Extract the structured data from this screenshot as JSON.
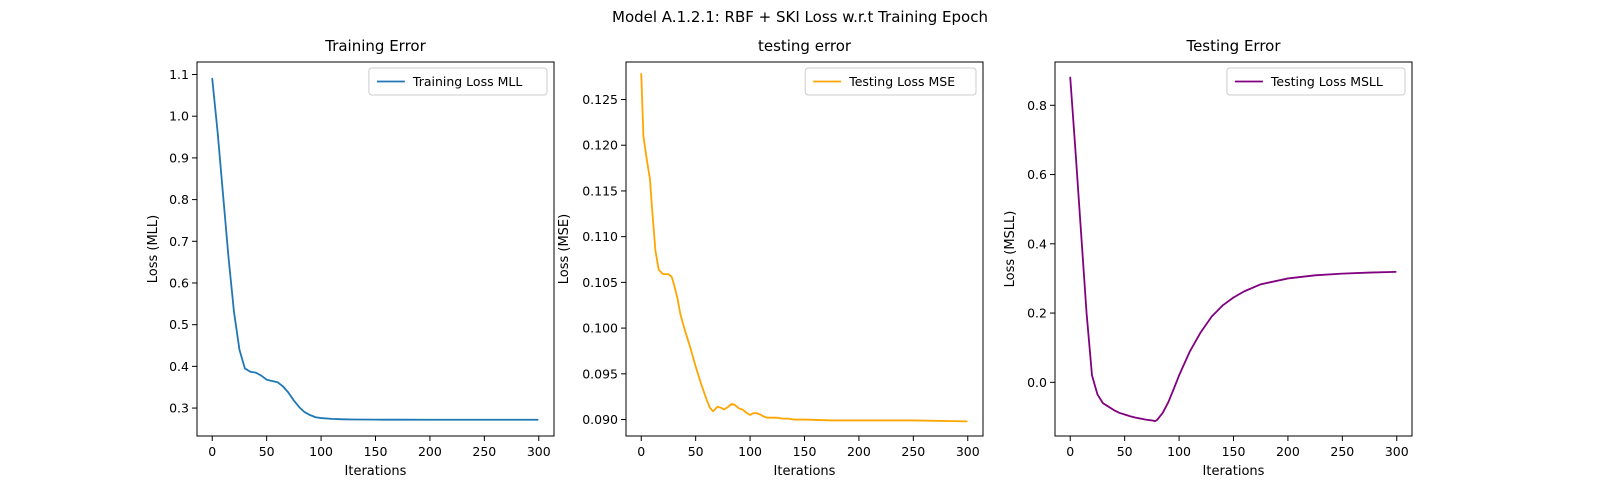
{
  "figure": {
    "suptitle": "Model A.1.2.1: RBF + SKI Loss w.r.t Training Epoch"
  },
  "chart_data": [
    {
      "type": "line",
      "title": "Training Error",
      "xlabel": "Iterations",
      "ylabel": "Loss (MLL)",
      "xlim": [
        -14,
        314
      ],
      "ylim": [
        0.233,
        1.13
      ],
      "xticks": [
        0,
        50,
        100,
        150,
        200,
        250,
        300
      ],
      "yticks": [
        0.3,
        0.4,
        0.5,
        0.6,
        0.7,
        0.8,
        0.9,
        1.0,
        1.1
      ],
      "ytick_labels": [
        "0.3",
        "0.4",
        "0.5",
        "0.6",
        "0.7",
        "0.8",
        "0.9",
        "1.0",
        "1.1"
      ],
      "legend_position": "upper-right",
      "series": [
        {
          "name": "Training Loss MLL",
          "color": "#1f77b4",
          "x": [
            0,
            5,
            10,
            15,
            20,
            25,
            30,
            35,
            40,
            45,
            50,
            55,
            60,
            65,
            70,
            75,
            80,
            85,
            90,
            95,
            100,
            110,
            120,
            130,
            150,
            175,
            200,
            250,
            299
          ],
          "y": [
            1.09,
            0.96,
            0.81,
            0.66,
            0.53,
            0.44,
            0.395,
            0.387,
            0.385,
            0.378,
            0.368,
            0.365,
            0.362,
            0.352,
            0.337,
            0.318,
            0.302,
            0.29,
            0.283,
            0.278,
            0.276,
            0.274,
            0.273,
            0.2725,
            0.2722,
            0.2721,
            0.272,
            0.272,
            0.272
          ]
        }
      ]
    },
    {
      "type": "line",
      "title": "testing error",
      "xlabel": "Iterations",
      "ylabel": "Loss (MSE)",
      "xlim": [
        -14,
        314
      ],
      "ylim": [
        0.0882,
        0.1291
      ],
      "xticks": [
        0,
        50,
        100,
        150,
        200,
        250,
        300
      ],
      "yticks": [
        0.09,
        0.095,
        0.1,
        0.105,
        0.11,
        0.115,
        0.12,
        0.125
      ],
      "ytick_labels": [
        "0.090",
        "0.095",
        "0.100",
        "0.105",
        "0.110",
        "0.115",
        "0.120",
        "0.125"
      ],
      "legend_position": "upper-right",
      "series": [
        {
          "name": "Testing Loss MSE",
          "color": "#ffa500",
          "x": [
            0,
            2,
            5,
            8,
            10,
            13,
            16,
            20,
            25,
            28,
            30,
            33,
            36,
            40,
            45,
            50,
            55,
            60,
            63,
            66,
            70,
            73,
            76,
            80,
            83,
            86,
            90,
            93,
            96,
            100,
            103,
            106,
            110,
            113,
            116,
            120,
            125,
            130,
            135,
            140,
            150,
            175,
            200,
            250,
            299
          ],
          "y": [
            0.1278,
            0.121,
            0.1185,
            0.1163,
            0.113,
            0.1085,
            0.1064,
            0.1059,
            0.1059,
            0.1056,
            0.1048,
            0.1034,
            0.1015,
            0.0998,
            0.0979,
            0.0958,
            0.0939,
            0.0922,
            0.0913,
            0.0909,
            0.0914,
            0.0913,
            0.0911,
            0.0914,
            0.0917,
            0.0916,
            0.0912,
            0.0911,
            0.0908,
            0.0905,
            0.0907,
            0.0907,
            0.0905,
            0.0903,
            0.0902,
            0.0902,
            0.0902,
            0.0901,
            0.0901,
            0.09,
            0.09,
            0.0899,
            0.0899,
            0.0899,
            0.0898
          ]
        }
      ]
    },
    {
      "type": "line",
      "title": "Testing Error",
      "xlabel": "Iterations",
      "ylabel": "Loss (MSLL)",
      "xlim": [
        -14,
        314
      ],
      "ylim": [
        -0.155,
        0.925
      ],
      "xticks": [
        0,
        50,
        100,
        150,
        200,
        250,
        300
      ],
      "yticks": [
        0.0,
        0.2,
        0.4,
        0.6,
        0.8
      ],
      "ytick_labels": [
        "0.0",
        "0.2",
        "0.4",
        "0.6",
        "0.8"
      ],
      "legend_position": "upper-right",
      "series": [
        {
          "name": "Testing Loss MSLL",
          "color": "#800080",
          "x": [
            0,
            5,
            10,
            15,
            20,
            25,
            30,
            35,
            40,
            45,
            50,
            55,
            60,
            65,
            70,
            75,
            78,
            80,
            82,
            85,
            90,
            95,
            100,
            105,
            110,
            120,
            130,
            140,
            150,
            160,
            175,
            200,
            225,
            250,
            275,
            299
          ],
          "y": [
            0.88,
            0.66,
            0.43,
            0.2,
            0.02,
            -0.035,
            -0.06,
            -0.07,
            -0.08,
            -0.088,
            -0.093,
            -0.098,
            -0.102,
            -0.105,
            -0.108,
            -0.11,
            -0.112,
            -0.108,
            -0.1,
            -0.088,
            -0.058,
            -0.02,
            0.02,
            0.055,
            0.09,
            0.145,
            0.19,
            0.222,
            0.245,
            0.263,
            0.283,
            0.3,
            0.309,
            0.314,
            0.317,
            0.319
          ]
        }
      ]
    }
  ]
}
